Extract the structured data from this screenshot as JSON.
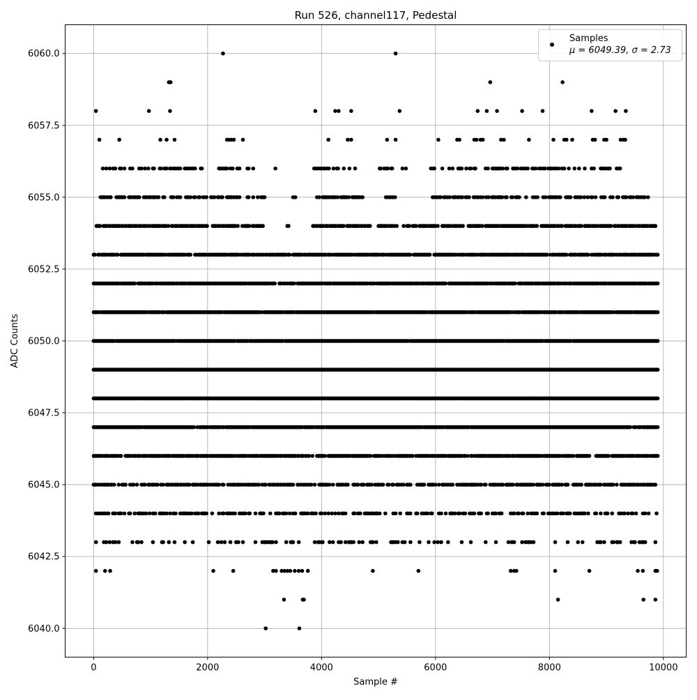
{
  "chart_data": {
    "type": "scatter",
    "title": "Run 526, channel117, Pedestal",
    "xlabel": "Sample #",
    "ylabel": "ADC Counts",
    "xlim": [
      -500,
      10400
    ],
    "ylim": [
      6039,
      6061
    ],
    "x_ticks": [
      0,
      2000,
      4000,
      6000,
      8000,
      10000
    ],
    "x_tick_labels": [
      "0",
      "2000",
      "4000",
      "6000",
      "8000",
      "10000"
    ],
    "y_ticks": [
      6040.0,
      6042.5,
      6045.0,
      6047.5,
      6050.0,
      6052.5,
      6055.0,
      6057.5,
      6060.0
    ],
    "y_tick_labels": [
      "6040.0",
      "6042.5",
      "6045.0",
      "6047.5",
      "6050.0",
      "6052.5",
      "6055.0",
      "6057.5",
      "6060.0"
    ],
    "grid": true,
    "marker_color": "#000000",
    "legend": {
      "placement": "top-right",
      "entries": [
        {
          "label": "Samples",
          "stats": "μ = 6049.39, σ = 2.73"
        }
      ]
    },
    "n_samples": 10000,
    "x_range": [
      0,
      9900
    ],
    "mean": 6049.39,
    "std": 2.73,
    "series": [
      {
        "name": "Samples",
        "points": [
          [
            40,
            6058
          ],
          [
            970,
            6058
          ],
          [
            1340,
            6058
          ],
          [
            3890,
            6058
          ],
          [
            4240,
            6058
          ],
          [
            4300,
            6058
          ],
          [
            4520,
            6058
          ],
          [
            5370,
            6058
          ],
          [
            6740,
            6058
          ],
          [
            6900,
            6058
          ],
          [
            7080,
            6058
          ],
          [
            7520,
            6058
          ],
          [
            7880,
            6058
          ],
          [
            8740,
            6058
          ],
          [
            9160,
            6058
          ],
          [
            9340,
            6058
          ],
          [
            1320,
            6059
          ],
          [
            1350,
            6059
          ],
          [
            6960,
            6059
          ],
          [
            8230,
            6059
          ],
          [
            2270,
            6060
          ],
          [
            5300,
            6060
          ],
          [
            3020,
            6040
          ],
          [
            3610,
            6040
          ],
          [
            3340,
            6041
          ],
          [
            3670,
            6041
          ],
          [
            3690,
            6041
          ],
          [
            8150,
            6041
          ],
          [
            9650,
            6041
          ],
          [
            9860,
            6041
          ],
          [
            40,
            6042
          ],
          [
            200,
            6042
          ],
          [
            290,
            6042
          ],
          [
            2100,
            6042
          ],
          [
            2450,
            6042
          ],
          [
            3150,
            6042
          ],
          [
            3200,
            6042
          ],
          [
            3300,
            6042
          ],
          [
            3350,
            6042
          ],
          [
            3400,
            6042
          ],
          [
            3450,
            6042
          ],
          [
            3530,
            6042
          ],
          [
            3600,
            6042
          ],
          [
            3660,
            6042
          ],
          [
            3760,
            6042
          ],
          [
            4900,
            6042
          ],
          [
            5700,
            6042
          ],
          [
            7320,
            6042
          ],
          [
            7380,
            6042
          ],
          [
            7420,
            6042
          ],
          [
            8100,
            6042
          ],
          [
            8700,
            6042
          ],
          [
            9550,
            6042
          ],
          [
            9640,
            6042
          ],
          [
            9860,
            6042
          ],
          [
            9890,
            6042
          ],
          [
            100,
            6057
          ],
          [
            450,
            6057
          ],
          [
            1170,
            6057
          ],
          [
            1280,
            6057
          ],
          [
            1420,
            6057
          ],
          [
            2340,
            6057
          ],
          [
            2380,
            6057
          ],
          [
            2420,
            6057
          ],
          [
            2460,
            6057
          ],
          [
            2620,
            6057
          ],
          [
            4120,
            6057
          ],
          [
            4460,
            6057
          ],
          [
            4520,
            6057
          ],
          [
            5150,
            6057
          ],
          [
            5300,
            6057
          ],
          [
            6050,
            6057
          ],
          [
            6380,
            6057
          ],
          [
            6420,
            6057
          ],
          [
            6680,
            6057
          ],
          [
            6720,
            6057
          ],
          [
            6790,
            6057
          ],
          [
            6830,
            6057
          ],
          [
            7150,
            6057
          ],
          [
            7200,
            6057
          ],
          [
            7640,
            6057
          ],
          [
            8070,
            6057
          ],
          [
            8260,
            6057
          ],
          [
            8300,
            6057
          ],
          [
            8400,
            6057
          ],
          [
            8760,
            6057
          ],
          [
            8800,
            6057
          ],
          [
            8960,
            6057
          ],
          [
            9000,
            6057
          ],
          [
            9250,
            6057
          ],
          [
            9300,
            6057
          ],
          [
            9330,
            6057
          ]
        ],
        "bands": [
          {
            "y": 6056,
            "density": 0.38,
            "segments": [
              [
                120,
                1900
              ],
              [
                2200,
                2800
              ],
              [
                3150,
                3200
              ],
              [
                3850,
                4600
              ],
              [
                5000,
                5500
              ],
              [
                5920,
                9280
              ]
            ]
          },
          {
            "y": 6055,
            "density": 0.55,
            "segments": [
              [
                100,
                3000
              ],
              [
                3500,
                3600
              ],
              [
                3900,
                4750
              ],
              [
                5130,
                5350
              ],
              [
                5950,
                9750
              ]
            ]
          },
          {
            "y": 6054,
            "density": 0.72,
            "segments": [
              [
                50,
                3000
              ],
              [
                3400,
                3420
              ],
              [
                3850,
                4850
              ],
              [
                4980,
                9880
              ]
            ]
          },
          {
            "y": 6053,
            "density": 0.88,
            "segments": [
              [
                0,
                9900
              ]
            ]
          },
          {
            "y": 6052,
            "density": 0.92,
            "segments": [
              [
                0,
                9900
              ]
            ]
          },
          {
            "y": 6051,
            "density": 0.96,
            "segments": [
              [
                0,
                9900
              ]
            ]
          },
          {
            "y": 6050,
            "density": 0.98,
            "segments": [
              [
                0,
                9900
              ]
            ]
          },
          {
            "y": 6049,
            "density": 1.0,
            "segments": [
              [
                0,
                9900
              ]
            ]
          },
          {
            "y": 6048,
            "density": 1.0,
            "segments": [
              [
                0,
                9900
              ]
            ]
          },
          {
            "y": 6047,
            "density": 0.96,
            "segments": [
              [
                0,
                9900
              ]
            ]
          },
          {
            "y": 6046,
            "density": 0.85,
            "segments": [
              [
                0,
                9900
              ]
            ]
          },
          {
            "y": 6045,
            "density": 0.62,
            "segments": [
              [
                0,
                9900
              ]
            ]
          },
          {
            "y": 6044,
            "density": 0.42,
            "segments": [
              [
                0,
                9900
              ]
            ]
          },
          {
            "y": 6043,
            "density": 0.2,
            "segments": [
              [
                0,
                9900
              ]
            ]
          }
        ]
      }
    ]
  }
}
